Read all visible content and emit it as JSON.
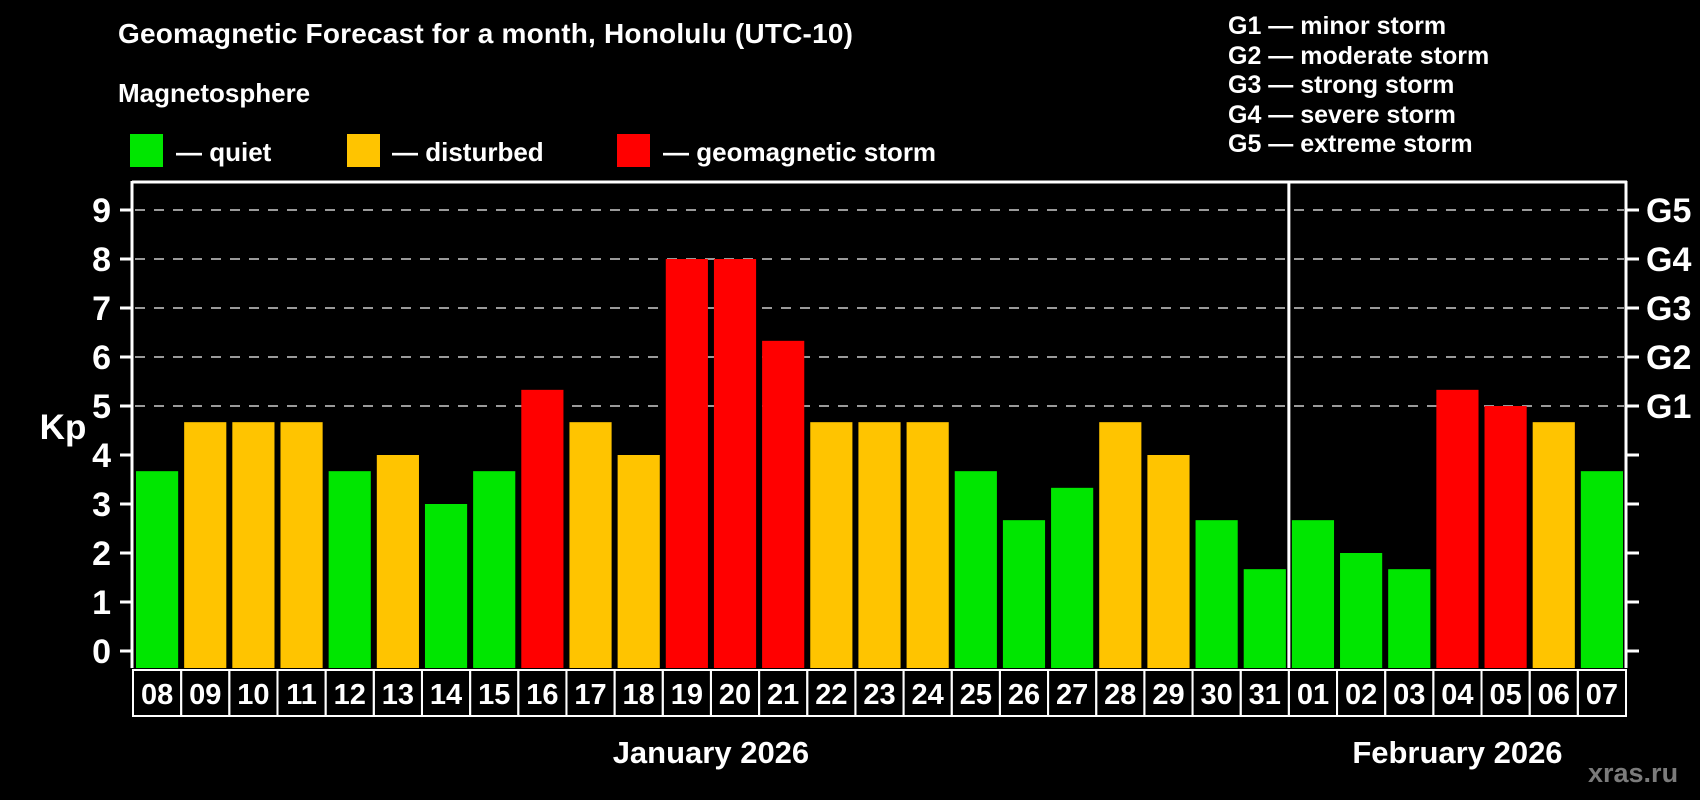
{
  "header": {
    "title": "Geomagnetic Forecast for a month, Honolulu (UTC-10)",
    "subtitle": "Magnetosphere"
  },
  "legend": {
    "items": [
      {
        "key": "quiet",
        "label": "— quiet",
        "color": "#00E600"
      },
      {
        "key": "disturbed",
        "label": "— disturbed",
        "color": "#FFC400"
      },
      {
        "key": "storm",
        "label": "— geomagnetic storm",
        "color": "#FF0000"
      }
    ]
  },
  "g_legend": {
    "items": [
      "G1 — minor storm",
      "G2 — moderate storm",
      "G3 — strong storm",
      "G4 — severe storm",
      "G5 — extreme storm"
    ]
  },
  "watermark": "xras.ru",
  "chart_data": {
    "type": "bar",
    "title": "Geomagnetic Forecast for a month, Honolulu (UTC-10)",
    "ylabel": "Kp",
    "ylim": [
      0,
      9
    ],
    "y_ticks": [
      0,
      1,
      2,
      3,
      4,
      5,
      6,
      7,
      8,
      9
    ],
    "gridlines_at_kp": [
      5,
      6,
      7,
      8,
      9
    ],
    "grid": true,
    "legend_position": "top-left",
    "right_axis": [
      {
        "kp": 5,
        "label": "G1"
      },
      {
        "kp": 6,
        "label": "G2"
      },
      {
        "kp": 7,
        "label": "G3"
      },
      {
        "kp": 8,
        "label": "G4"
      },
      {
        "kp": 9,
        "label": "G5"
      }
    ],
    "months": [
      {
        "label": "January 2026",
        "bars": 24
      },
      {
        "label": "February 2026",
        "bars": 7
      }
    ],
    "colors": {
      "quiet": "#00E600",
      "disturbed": "#FFC400",
      "storm": "#FF0000",
      "grid": "#9A9A9A",
      "axis": "#FFFFFF"
    },
    "bars": [
      {
        "date": "08",
        "kp": 3.67,
        "status": "quiet"
      },
      {
        "date": "09",
        "kp": 4.67,
        "status": "disturbed"
      },
      {
        "date": "10",
        "kp": 4.67,
        "status": "disturbed"
      },
      {
        "date": "11",
        "kp": 4.67,
        "status": "disturbed"
      },
      {
        "date": "12",
        "kp": 3.67,
        "status": "quiet"
      },
      {
        "date": "13",
        "kp": 4.0,
        "status": "disturbed"
      },
      {
        "date": "14",
        "kp": 3.0,
        "status": "quiet"
      },
      {
        "date": "15",
        "kp": 3.67,
        "status": "quiet"
      },
      {
        "date": "16",
        "kp": 5.33,
        "status": "storm"
      },
      {
        "date": "17",
        "kp": 4.67,
        "status": "disturbed"
      },
      {
        "date": "18",
        "kp": 4.0,
        "status": "disturbed"
      },
      {
        "date": "19",
        "kp": 8.0,
        "status": "storm"
      },
      {
        "date": "20",
        "kp": 8.0,
        "status": "storm"
      },
      {
        "date": "21",
        "kp": 6.33,
        "status": "storm"
      },
      {
        "date": "22",
        "kp": 4.67,
        "status": "disturbed"
      },
      {
        "date": "23",
        "kp": 4.67,
        "status": "disturbed"
      },
      {
        "date": "24",
        "kp": 4.67,
        "status": "disturbed"
      },
      {
        "date": "25",
        "kp": 3.67,
        "status": "quiet"
      },
      {
        "date": "26",
        "kp": 2.67,
        "status": "quiet"
      },
      {
        "date": "27",
        "kp": 3.33,
        "status": "quiet"
      },
      {
        "date": "28",
        "kp": 4.67,
        "status": "disturbed"
      },
      {
        "date": "29",
        "kp": 4.0,
        "status": "disturbed"
      },
      {
        "date": "30",
        "kp": 2.67,
        "status": "quiet"
      },
      {
        "date": "31",
        "kp": 1.67,
        "status": "quiet"
      },
      {
        "date": "01",
        "kp": 2.67,
        "status": "quiet"
      },
      {
        "date": "02",
        "kp": 2.0,
        "status": "quiet"
      },
      {
        "date": "03",
        "kp": 1.67,
        "status": "quiet"
      },
      {
        "date": "04",
        "kp": 5.33,
        "status": "storm"
      },
      {
        "date": "05",
        "kp": 5.0,
        "status": "storm"
      },
      {
        "date": "06",
        "kp": 4.67,
        "status": "disturbed"
      },
      {
        "date": "07",
        "kp": 3.67,
        "status": "quiet"
      }
    ]
  }
}
